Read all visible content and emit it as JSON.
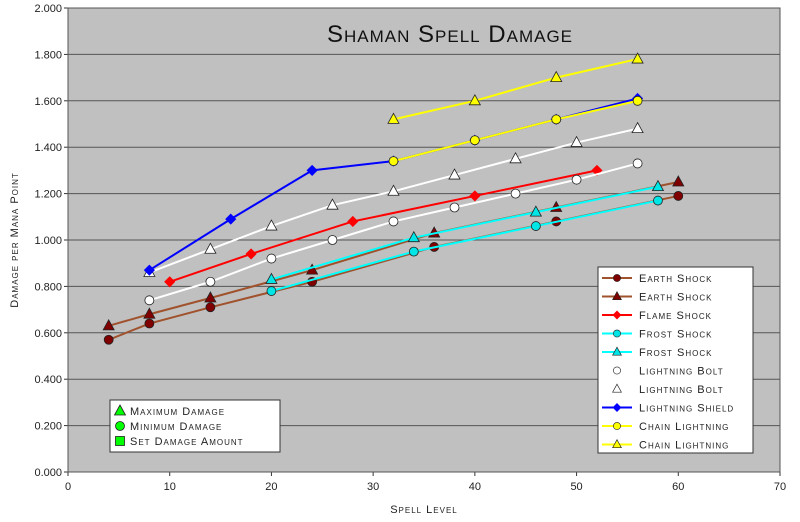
{
  "chart_data": {
    "type": "line",
    "title": "Shaman Spell Damage",
    "xlabel": "Spell Level",
    "ylabel": "Damage per Mana Point",
    "xlim": [
      0,
      70
    ],
    "ylim": [
      0,
      2
    ],
    "xticks": [
      "0",
      "10",
      "20",
      "30",
      "40",
      "50",
      "60",
      "70"
    ],
    "yticks": [
      "0.000",
      "0.200",
      "0.400",
      "0.600",
      "0.800",
      "1.000",
      "1.200",
      "1.400",
      "1.600",
      "1.800",
      "2.000"
    ],
    "grid": "horizontal",
    "legend_placement": "bottom-right",
    "plot_background": "#c0c0c0",
    "series": [
      {
        "name": "Earth Shock",
        "marker": "circle",
        "line": "#a0522d",
        "fill": "#800000",
        "x": [
          4,
          8,
          14,
          24,
          36,
          48,
          60
        ],
        "y": [
          0.57,
          0.64,
          0.71,
          0.82,
          0.97,
          1.08,
          1.19
        ]
      },
      {
        "name": "Earth Shock",
        "marker": "triangle",
        "line": "#a0522d",
        "fill": "#800000",
        "x": [
          4,
          8,
          14,
          24,
          36,
          48,
          60
        ],
        "y": [
          0.63,
          0.68,
          0.75,
          0.87,
          1.03,
          1.14,
          1.25
        ]
      },
      {
        "name": "Flame Shock",
        "marker": "diamond",
        "line": "#ff0000",
        "fill": "#ff0000",
        "x": [
          10,
          18,
          28,
          40,
          52
        ],
        "y": [
          0.82,
          0.94,
          1.08,
          1.19,
          1.3
        ]
      },
      {
        "name": "Frost Shock",
        "marker": "circle",
        "line": "#00ffff",
        "fill": "#00e5e5",
        "x": [
          20,
          34,
          46,
          58
        ],
        "y": [
          0.78,
          0.95,
          1.06,
          1.17
        ]
      },
      {
        "name": "Frost Shock",
        "marker": "triangle",
        "line": "#00ffff",
        "fill": "#00e5e5",
        "x": [
          20,
          34,
          46,
          58
        ],
        "y": [
          0.83,
          1.01,
          1.12,
          1.23
        ]
      },
      {
        "name": "Lightning Bolt",
        "marker": "circle",
        "line": "#ffffff",
        "fill": "#ffffff",
        "x": [
          8,
          14,
          20,
          26,
          32,
          38,
          44,
          50,
          56
        ],
        "y": [
          0.74,
          0.82,
          0.92,
          1.0,
          1.08,
          1.14,
          1.2,
          1.26,
          1.33
        ]
      },
      {
        "name": "Lightning Bolt",
        "marker": "triangle",
        "line": "#ffffff",
        "fill": "#ffffff",
        "x": [
          8,
          14,
          20,
          26,
          32,
          38,
          44,
          50,
          56
        ],
        "y": [
          0.86,
          0.96,
          1.06,
          1.15,
          1.21,
          1.28,
          1.35,
          1.42,
          1.48
        ]
      },
      {
        "name": "Lightning Shield",
        "marker": "diamond",
        "line": "#0000ff",
        "fill": "#0000ff",
        "x": [
          8,
          16,
          24,
          32,
          40,
          48,
          56
        ],
        "y": [
          0.87,
          1.09,
          1.3,
          1.34,
          1.43,
          1.52,
          1.61
        ]
      },
      {
        "name": "Chain Lightning",
        "marker": "circle",
        "line": "#ffff00",
        "fill": "#ffff00",
        "x": [
          32,
          40,
          48,
          56
        ],
        "y": [
          1.34,
          1.43,
          1.52,
          1.6
        ]
      },
      {
        "name": "Chain Lightning",
        "marker": "triangle",
        "line": "#ffff00",
        "fill": "#ffff00",
        "x": [
          32,
          40,
          48,
          56
        ],
        "y": [
          1.52,
          1.6,
          1.7,
          1.78
        ]
      }
    ],
    "key_legend": [
      {
        "label": "Maximum Damage",
        "marker": "triangle",
        "color": "#00ff00"
      },
      {
        "label": "Minimum Damage",
        "marker": "circle",
        "color": "#00ff00"
      },
      {
        "label": "Set Damage Amount",
        "marker": "square",
        "color": "#00ff00"
      }
    ]
  }
}
